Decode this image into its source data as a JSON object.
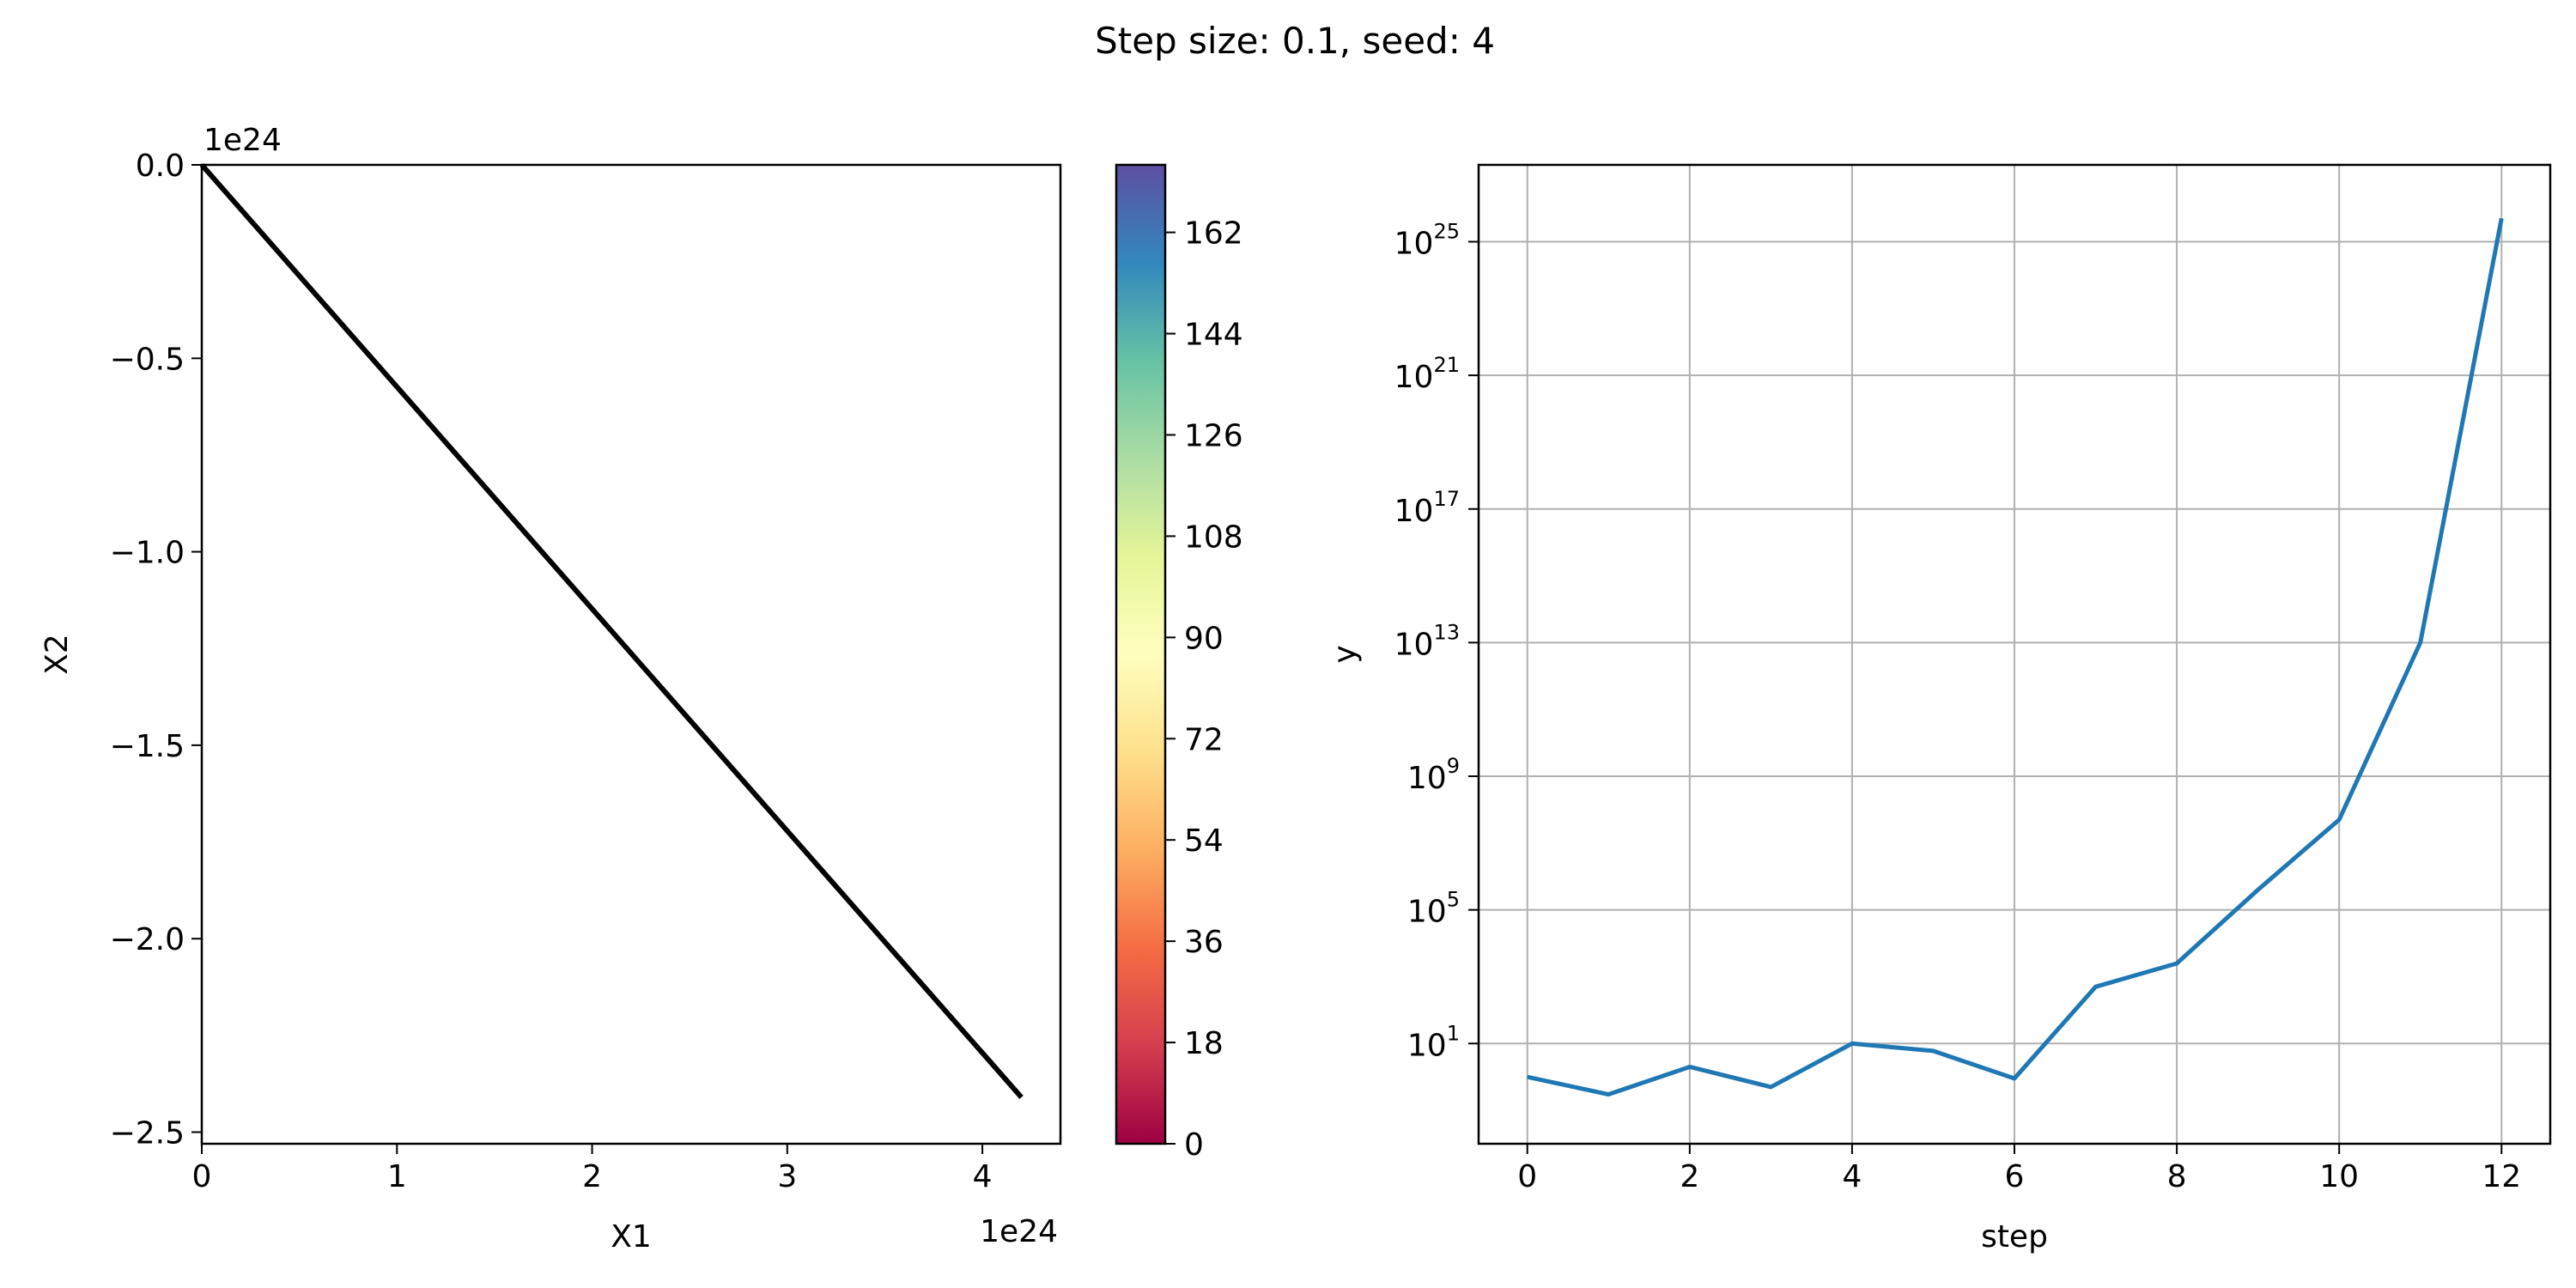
{
  "title": "Step size: 0.1, seed: 4",
  "chart_data": [
    {
      "type": "line",
      "xlabel": "X1",
      "ylabel": "X2",
      "x_offset_label": "1e24",
      "y_offset_label": "1e24",
      "xlim": [
        0,
        4.4
      ],
      "ylim": [
        -2.53,
        0
      ],
      "x_ticks": [
        0,
        1,
        2,
        3,
        4
      ],
      "x_tick_labels": [
        "0",
        "1",
        "2",
        "3",
        "4"
      ],
      "y_ticks": [
        0,
        -0.5,
        -1.0,
        -1.5,
        -2.0,
        -2.5
      ],
      "y_tick_labels": [
        "0.0",
        "−0.5",
        "−1.0",
        "−1.5",
        "−2.0",
        "−2.5"
      ],
      "grid": false,
      "series": [
        {
          "color": "#000000",
          "x": [
            0,
            4.2
          ],
          "y": [
            0,
            -2.41
          ]
        }
      ],
      "colorbar": {
        "colormap": "Spectral",
        "range": [
          0,
          174
        ],
        "ticks": [
          0,
          18,
          36,
          54,
          72,
          90,
          108,
          126,
          144,
          162
        ],
        "tick_labels": [
          "0",
          "18",
          "36",
          "54",
          "72",
          "90",
          "108",
          "126",
          "144",
          "162"
        ]
      }
    },
    {
      "type": "line",
      "xlabel": "step",
      "ylabel": "y",
      "yscale": "log",
      "xlim": [
        -0.6,
        12.6
      ],
      "ylim_log10": [
        -2,
        27.3
      ],
      "x_ticks": [
        0,
        2,
        4,
        6,
        8,
        10,
        12
      ],
      "x_tick_labels": [
        "0",
        "2",
        "4",
        "6",
        "8",
        "10",
        "12"
      ],
      "y_ticks_log10": [
        1,
        5,
        9,
        13,
        17,
        21,
        25
      ],
      "y_tick_labels": [
        {
          "base": "10",
          "exp": "1"
        },
        {
          "base": "10",
          "exp": "5"
        },
        {
          "base": "10",
          "exp": "9"
        },
        {
          "base": "10",
          "exp": "13"
        },
        {
          "base": "10",
          "exp": "17"
        },
        {
          "base": "10",
          "exp": "21"
        },
        {
          "base": "10",
          "exp": "25"
        }
      ],
      "grid": true,
      "series": [
        {
          "color": "#1f77b4",
          "x": [
            0,
            1,
            2,
            3,
            4,
            5,
            6,
            7,
            8,
            9,
            10,
            11,
            12
          ],
          "y": [
            1,
            0.3,
            2,
            0.5,
            10,
            6,
            0.9,
            500,
            2500,
            400000,
            50000000,
            10000000000000.0,
            5e+25
          ]
        }
      ]
    }
  ]
}
